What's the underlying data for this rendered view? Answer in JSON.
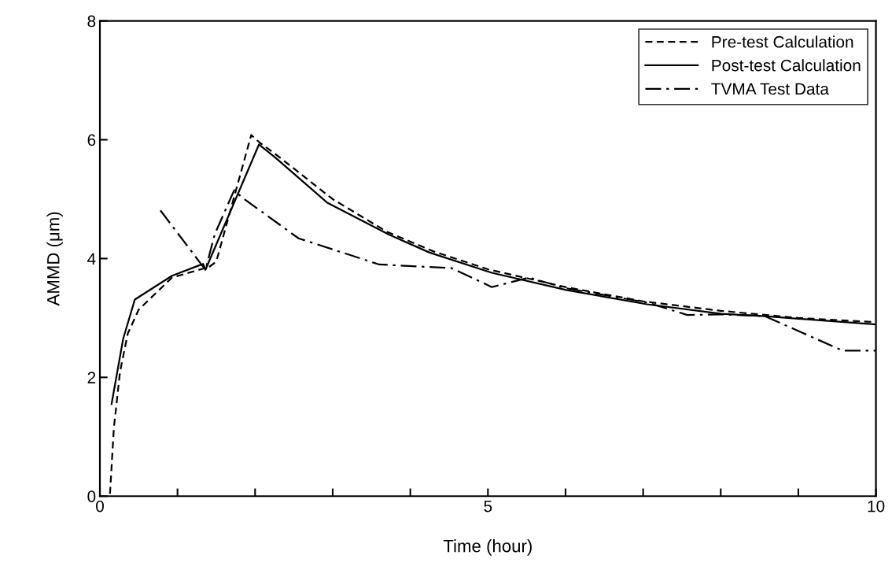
{
  "chart_data": {
    "type": "line",
    "xlabel": "Time (hour)",
    "ylabel": "AMMD (μm)",
    "xlim": [
      0,
      10
    ],
    "ylim": [
      0,
      8
    ],
    "xticks": [
      0,
      {
        "value": 1,
        "label": null
      },
      {
        "value": 2,
        "label": null
      },
      {
        "value": 3,
        "label": null
      },
      {
        "value": 4,
        "label": null
      },
      5,
      {
        "value": 6,
        "label": null
      },
      {
        "value": 7,
        "label": null
      },
      {
        "value": 8,
        "label": null
      },
      {
        "value": 9,
        "label": null
      },
      10
    ],
    "yticks": [
      0,
      2,
      4,
      6,
      8
    ],
    "grid": false,
    "legend": "top right",
    "marker": "none",
    "series": [
      {
        "name": "Pre-test Calculation",
        "color": "#000000",
        "line_style": "dashed",
        "x": [
          0.13,
          0.18,
          0.26,
          0.36,
          0.5,
          0.93,
          1.33,
          1.4,
          1.5,
          1.95,
          2.06,
          2.3,
          3.0,
          3.7,
          4.3,
          5.0,
          6.0,
          7.0,
          8.0,
          9.0,
          10.0
        ],
        "values": [
          0.04,
          1.15,
          2.1,
          2.74,
          3.14,
          3.68,
          3.83,
          3.85,
          3.95,
          6.08,
          5.95,
          5.72,
          5.0,
          4.45,
          4.12,
          3.82,
          3.52,
          3.28,
          3.12,
          3.0,
          2.93
        ]
      },
      {
        "name": "Post-test Calculation",
        "color": "#000000",
        "line_style": "solid",
        "x": [
          0.15,
          0.3,
          0.45,
          0.93,
          1.33,
          1.36,
          2.05,
          2.26,
          2.93,
          3.73,
          4.25,
          5.05,
          6.01,
          7.05,
          8.01,
          8.57,
          10.0
        ],
        "values": [
          1.55,
          2.65,
          3.31,
          3.71,
          3.91,
          3.81,
          5.92,
          5.7,
          4.94,
          4.4,
          4.1,
          3.76,
          3.47,
          3.23,
          3.07,
          3.03,
          2.89
        ]
      },
      {
        "name": "TVMA Test Data",
        "color": "#000000",
        "line_style": "dashdot",
        "x": [
          0.78,
          1.36,
          1.48,
          1.73,
          1.83,
          2.56,
          3.6,
          4.53,
          5.05,
          5.53,
          6.01,
          7.05,
          7.57,
          8.01,
          8.57,
          9.57,
          10.0
        ],
        "values": [
          4.81,
          3.81,
          4.41,
          5.15,
          5.03,
          4.34,
          3.9,
          3.84,
          3.52,
          3.68,
          3.5,
          3.26,
          3.05,
          3.06,
          3.03,
          2.45,
          2.45
        ]
      }
    ]
  }
}
